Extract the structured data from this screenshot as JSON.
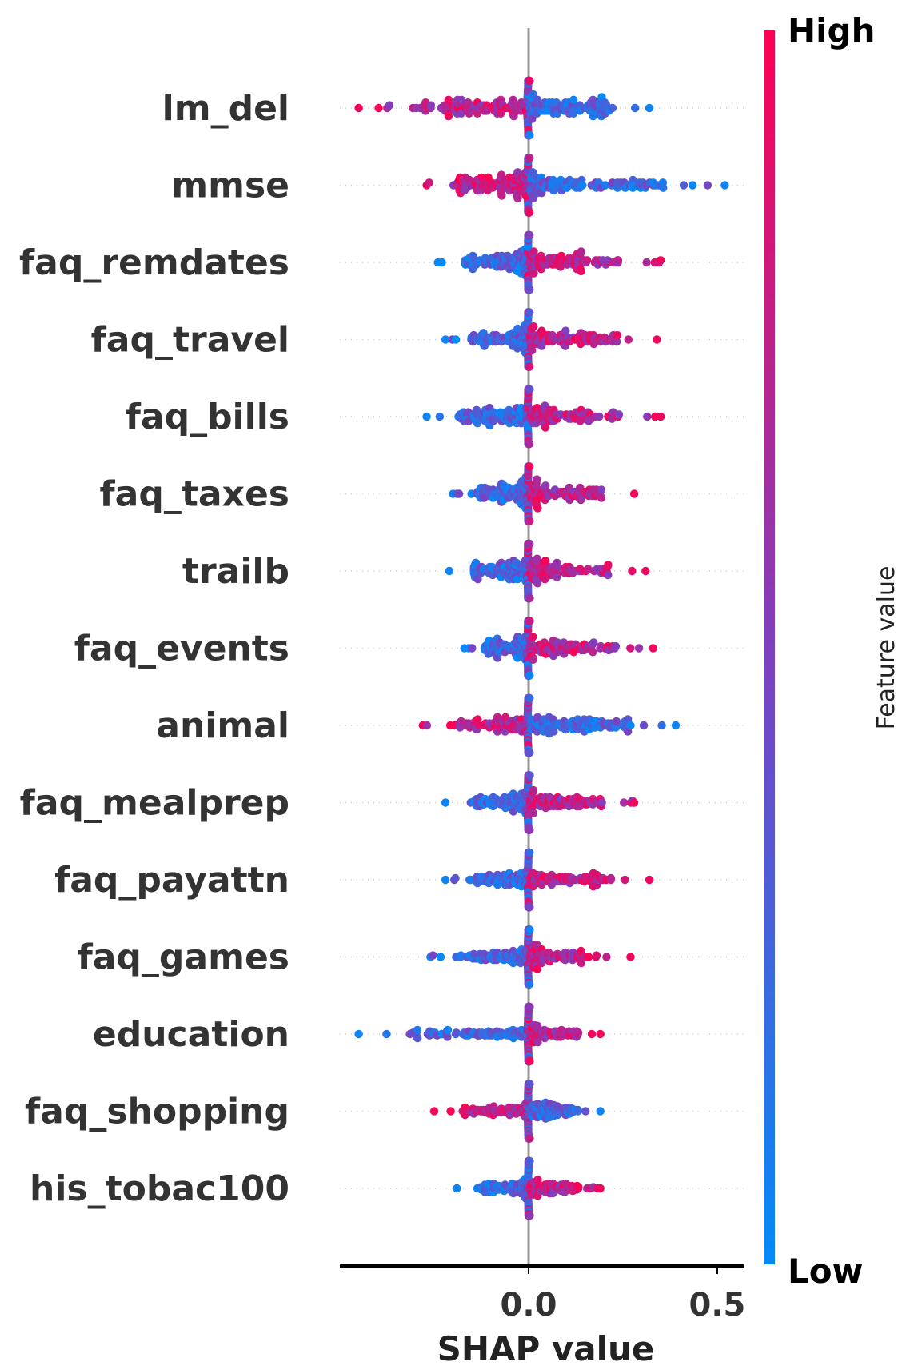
{
  "chart_data": {
    "type": "scatter",
    "subtype": "shap-beeswarm",
    "xlabel": "SHAP value",
    "xticks": [
      0.0,
      0.5
    ],
    "xtick_labels": [
      "0.0",
      "0.5"
    ],
    "xlim": [
      -0.5,
      0.57
    ],
    "colorbar": {
      "title": "Feature value",
      "high_label": "High",
      "low_label": "Low",
      "low_color": "#008bfb",
      "mid_color": "#7f3fbf",
      "high_color": "#ff0052"
    },
    "features": [
      {
        "name": "lm_del",
        "min": -0.45,
        "max": 0.32,
        "direction": -1,
        "spread": 1.0
      },
      {
        "name": "mmse",
        "min": -0.27,
        "max": 0.52,
        "direction": -1,
        "spread": 0.95
      },
      {
        "name": "faq_remdates",
        "min": -0.24,
        "max": 0.35,
        "direction": 1,
        "spread": 0.8
      },
      {
        "name": "faq_travel",
        "min": -0.22,
        "max": 0.34,
        "direction": 1,
        "spread": 0.8
      },
      {
        "name": "faq_bills",
        "min": -0.27,
        "max": 0.35,
        "direction": 1,
        "spread": 0.8
      },
      {
        "name": "faq_taxes",
        "min": -0.2,
        "max": 0.28,
        "direction": 1,
        "spread": 0.75
      },
      {
        "name": "trailb",
        "min": -0.21,
        "max": 0.31,
        "direction": 1,
        "spread": 0.75
      },
      {
        "name": "faq_events",
        "min": -0.17,
        "max": 0.33,
        "direction": 1,
        "spread": 0.7
      },
      {
        "name": "animal",
        "min": -0.28,
        "max": 0.39,
        "direction": -1,
        "spread": 0.75
      },
      {
        "name": "faq_mealprep",
        "min": -0.22,
        "max": 0.28,
        "direction": 1,
        "spread": 0.65
      },
      {
        "name": "faq_payattn",
        "min": -0.22,
        "max": 0.32,
        "direction": 1,
        "spread": 0.6
      },
      {
        "name": "faq_games",
        "min": -0.26,
        "max": 0.27,
        "direction": 1,
        "spread": 0.55
      },
      {
        "name": "education",
        "min": -0.45,
        "max": 0.19,
        "direction": 1,
        "spread": 0.5
      },
      {
        "name": "faq_shopping",
        "min": -0.25,
        "max": 0.19,
        "direction": -1,
        "spread": 0.45
      },
      {
        "name": "his_tobac100",
        "min": -0.19,
        "max": 0.19,
        "direction": 1,
        "spread": 0.45
      }
    ]
  }
}
